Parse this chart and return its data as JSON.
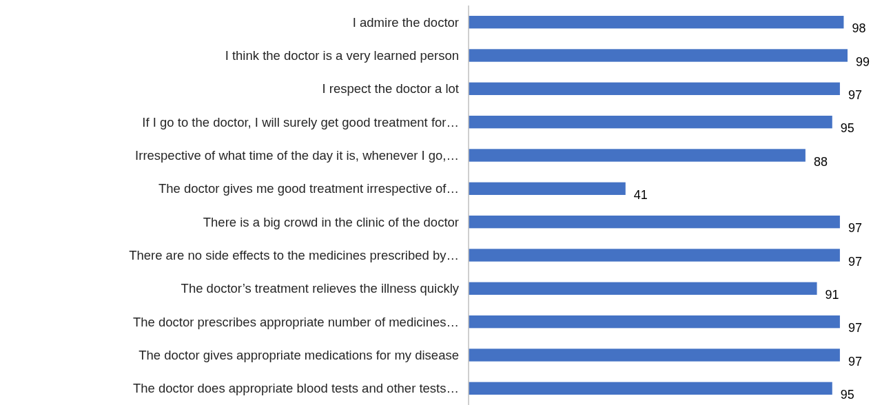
{
  "chart_data": {
    "type": "bar",
    "orientation": "horizontal",
    "categories": [
      "I admire the doctor",
      "I think the doctor is a very learned person",
      "I respect the doctor a lot",
      "If I go to the doctor, I will surely get good treatment for…",
      "Irrespective of what time of the day it is, whenever I go,…",
      "The doctor gives me good treatment irrespective of…",
      "There is a big crowd in the clinic of the doctor",
      "There are no side effects to the medicines prescribed by…",
      "The doctor’s treatment relieves the illness quickly",
      "The doctor prescribes appropriate number of medicines…",
      "The doctor gives appropriate medications for my disease",
      "The doctor does appropriate blood tests and other tests…"
    ],
    "values": [
      98,
      99,
      97,
      95,
      88,
      41,
      97,
      97,
      91,
      97,
      97,
      95
    ],
    "color": "#4472c4",
    "data_labels": true
  }
}
